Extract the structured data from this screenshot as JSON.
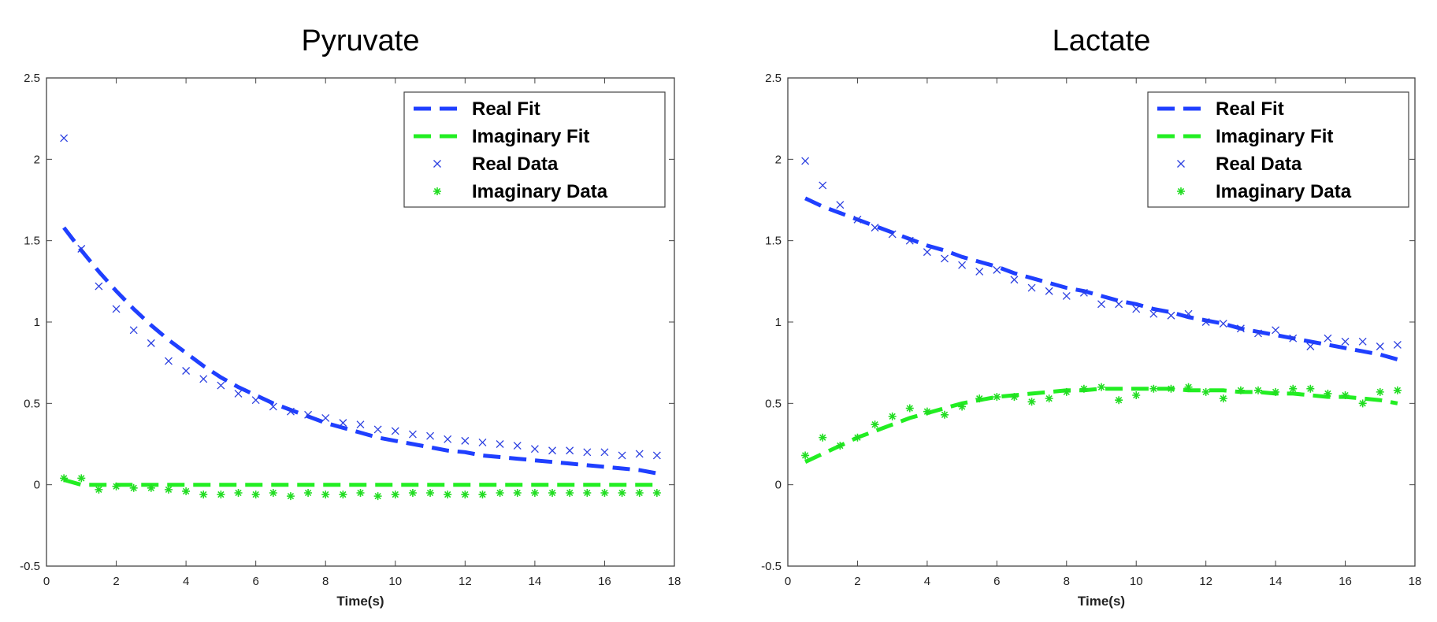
{
  "chart_data": [
    {
      "type": "scatter",
      "title": "Pyruvate",
      "xlabel": "Time(s)",
      "ylabel": "",
      "xlim": [
        0,
        18
      ],
      "ylim": [
        -0.5,
        2.5
      ],
      "xticks": [
        "0",
        "2",
        "4",
        "6",
        "8",
        "10",
        "12",
        "14",
        "16",
        "18"
      ],
      "yticks": [
        "-0.5",
        "0",
        "0.5",
        "1",
        "1.5",
        "2",
        "2.5"
      ],
      "grid": false,
      "legend_position": "top-right",
      "series": [
        {
          "name": "Real Fit",
          "kind": "line",
          "style": "dashed",
          "color": "#1f3fff",
          "x": [
            0.5,
            1,
            1.5,
            2,
            2.5,
            3,
            3.5,
            4,
            4.5,
            5,
            5.5,
            6,
            6.5,
            7,
            7.5,
            8,
            8.5,
            9,
            9.5,
            10,
            10.5,
            11,
            11.5,
            12,
            12.5,
            13,
            13.5,
            14,
            14.5,
            15,
            15.5,
            16,
            16.5,
            17,
            17.5
          ],
          "y": [
            1.58,
            1.44,
            1.31,
            1.19,
            1.08,
            0.98,
            0.89,
            0.81,
            0.73,
            0.66,
            0.6,
            0.55,
            0.5,
            0.46,
            0.42,
            0.38,
            0.35,
            0.32,
            0.29,
            0.27,
            0.25,
            0.23,
            0.21,
            0.2,
            0.18,
            0.17,
            0.16,
            0.15,
            0.14,
            0.13,
            0.12,
            0.11,
            0.1,
            0.09,
            0.07
          ]
        },
        {
          "name": "Imaginary Fit",
          "kind": "line",
          "style": "dashed",
          "color": "#22ee22",
          "x": [
            0.5,
            1,
            1.5,
            17.5
          ],
          "y": [
            0.03,
            0,
            0,
            0
          ]
        },
        {
          "name": "Real Data",
          "kind": "scatter",
          "marker": "×",
          "color": "#2b3fe0",
          "x": [
            0.5,
            1,
            1.5,
            2,
            2.5,
            3,
            3.5,
            4,
            4.5,
            5,
            5.5,
            6,
            6.5,
            7,
            7.5,
            8,
            8.5,
            9,
            9.5,
            10,
            10.5,
            11,
            11.5,
            12,
            12.5,
            13,
            13.5,
            14,
            14.5,
            15,
            15.5,
            16,
            16.5,
            17,
            17.5
          ],
          "y": [
            2.13,
            1.45,
            1.22,
            1.08,
            0.95,
            0.87,
            0.76,
            0.7,
            0.65,
            0.61,
            0.56,
            0.52,
            0.48,
            0.45,
            0.43,
            0.41,
            0.38,
            0.37,
            0.34,
            0.33,
            0.31,
            0.3,
            0.28,
            0.27,
            0.26,
            0.25,
            0.24,
            0.22,
            0.21,
            0.21,
            0.2,
            0.2,
            0.18,
            0.19,
            0.18
          ]
        },
        {
          "name": "Imaginary Data",
          "kind": "scatter",
          "marker": "*",
          "color": "#22dd22",
          "x": [
            0.5,
            1,
            1.5,
            2,
            2.5,
            3,
            3.5,
            4,
            4.5,
            5,
            5.5,
            6,
            6.5,
            7,
            7.5,
            8,
            8.5,
            9,
            9.5,
            10,
            10.5,
            11,
            11.5,
            12,
            12.5,
            13,
            13.5,
            14,
            14.5,
            15,
            15.5,
            16,
            16.5,
            17,
            17.5
          ],
          "y": [
            0.04,
            0.04,
            -0.03,
            -0.01,
            -0.02,
            -0.02,
            -0.03,
            -0.04,
            -0.06,
            -0.06,
            -0.05,
            -0.06,
            -0.05,
            -0.07,
            -0.05,
            -0.06,
            -0.06,
            -0.05,
            -0.07,
            -0.06,
            -0.05,
            -0.05,
            -0.06,
            -0.06,
            -0.06,
            -0.05,
            -0.05,
            -0.05,
            -0.05,
            -0.05,
            -0.05,
            -0.05,
            -0.05,
            -0.05,
            -0.05
          ]
        }
      ]
    },
    {
      "type": "scatter",
      "title": "Lactate",
      "xlabel": "Time(s)",
      "ylabel": "",
      "xlim": [
        0,
        18
      ],
      "ylim": [
        -0.5,
        2.5
      ],
      "xticks": [
        "0",
        "2",
        "4",
        "6",
        "8",
        "10",
        "12",
        "14",
        "16",
        "18"
      ],
      "yticks": [
        "-0.5",
        "0",
        "0.5",
        "1",
        "1.5",
        "2",
        "2.5"
      ],
      "grid": false,
      "legend_position": "top-right",
      "series": [
        {
          "name": "Real Fit",
          "kind": "line",
          "style": "dashed",
          "color": "#1f3fff",
          "x": [
            0.5,
            1,
            1.5,
            2,
            2.5,
            3,
            3.5,
            4,
            4.5,
            5,
            5.5,
            6,
            6.5,
            7,
            7.5,
            8,
            8.5,
            9,
            9.5,
            10,
            10.5,
            11,
            11.5,
            12,
            12.5,
            13,
            13.5,
            14,
            14.5,
            15,
            15.5,
            16,
            16.5,
            17,
            17.5
          ],
          "y": [
            1.76,
            1.71,
            1.67,
            1.63,
            1.59,
            1.55,
            1.51,
            1.47,
            1.44,
            1.4,
            1.37,
            1.34,
            1.3,
            1.27,
            1.24,
            1.21,
            1.19,
            1.16,
            1.13,
            1.11,
            1.08,
            1.06,
            1.03,
            1.01,
            0.99,
            0.96,
            0.94,
            0.92,
            0.9,
            0.88,
            0.86,
            0.84,
            0.82,
            0.8,
            0.77
          ]
        },
        {
          "name": "Imaginary Fit",
          "kind": "line",
          "style": "dashed",
          "color": "#22ee22",
          "x": [
            0.5,
            1,
            1.5,
            2,
            2.5,
            3,
            3.5,
            4,
            4.5,
            5,
            5.5,
            6,
            6.5,
            7,
            7.5,
            8,
            8.5,
            9,
            9.5,
            10,
            10.5,
            11,
            11.5,
            12,
            12.5,
            13,
            13.5,
            14,
            14.5,
            15,
            15.5,
            16,
            16.5,
            17,
            17.5
          ],
          "y": [
            0.14,
            0.19,
            0.24,
            0.29,
            0.33,
            0.37,
            0.41,
            0.44,
            0.47,
            0.5,
            0.52,
            0.54,
            0.55,
            0.56,
            0.57,
            0.58,
            0.58,
            0.59,
            0.59,
            0.59,
            0.59,
            0.59,
            0.58,
            0.58,
            0.58,
            0.57,
            0.57,
            0.56,
            0.56,
            0.55,
            0.54,
            0.54,
            0.53,
            0.52,
            0.5
          ]
        },
        {
          "name": "Real Data",
          "kind": "scatter",
          "marker": "×",
          "color": "#2b3fe0",
          "x": [
            0.5,
            1,
            1.5,
            2,
            2.5,
            3,
            3.5,
            4,
            4.5,
            5,
            5.5,
            6,
            6.5,
            7,
            7.5,
            8,
            8.5,
            9,
            9.5,
            10,
            10.5,
            11,
            11.5,
            12,
            12.5,
            13,
            13.5,
            14,
            14.5,
            15,
            15.5,
            16,
            16.5,
            17,
            17.5
          ],
          "y": [
            1.99,
            1.84,
            1.72,
            1.63,
            1.58,
            1.54,
            1.5,
            1.43,
            1.39,
            1.35,
            1.31,
            1.32,
            1.26,
            1.21,
            1.19,
            1.16,
            1.18,
            1.11,
            1.11,
            1.08,
            1.05,
            1.04,
            1.05,
            1.0,
            0.99,
            0.96,
            0.93,
            0.95,
            0.9,
            0.85,
            0.9,
            0.88,
            0.88,
            0.85,
            0.86
          ]
        },
        {
          "name": "Imaginary Data",
          "kind": "scatter",
          "marker": "*",
          "color": "#22dd22",
          "x": [
            0.5,
            1,
            1.5,
            2,
            2.5,
            3,
            3.5,
            4,
            4.5,
            5,
            5.5,
            6,
            6.5,
            7,
            7.5,
            8,
            8.5,
            9,
            9.5,
            10,
            10.5,
            11,
            11.5,
            12,
            12.5,
            13,
            13.5,
            14,
            14.5,
            15,
            15.5,
            16,
            16.5,
            17,
            17.5
          ],
          "y": [
            0.18,
            0.29,
            0.24,
            0.29,
            0.37,
            0.42,
            0.47,
            0.45,
            0.43,
            0.48,
            0.53,
            0.54,
            0.54,
            0.51,
            0.53,
            0.57,
            0.59,
            0.6,
            0.52,
            0.55,
            0.59,
            0.59,
            0.6,
            0.57,
            0.53,
            0.58,
            0.58,
            0.57,
            0.59,
            0.59,
            0.56,
            0.55,
            0.5,
            0.57,
            0.58
          ]
        }
      ]
    }
  ]
}
